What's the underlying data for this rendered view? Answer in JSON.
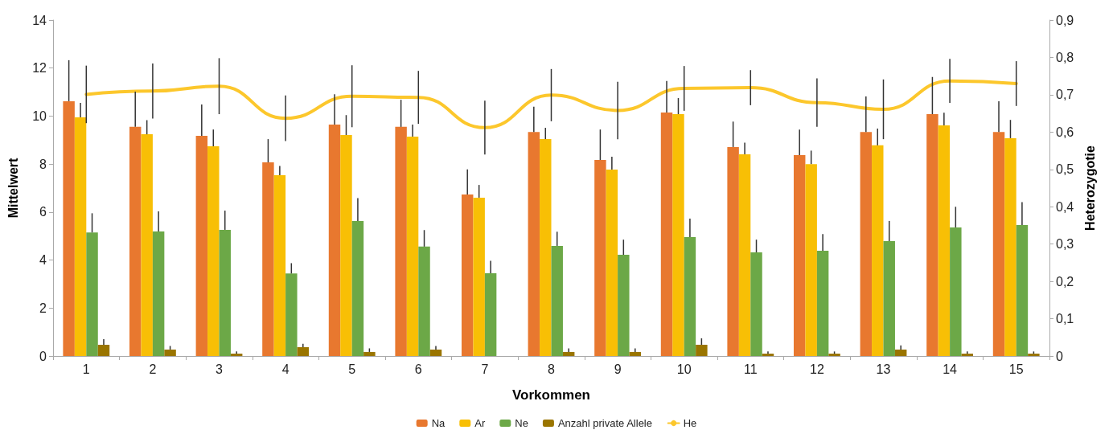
{
  "chart_data": {
    "type": "bar",
    "xlabel": "Vorkommen",
    "ylabel": "Mittelwert",
    "y2label": "Heterozygotie",
    "categories": [
      "1",
      "2",
      "3",
      "4",
      "5",
      "6",
      "7",
      "8",
      "9",
      "10",
      "11",
      "12",
      "13",
      "14",
      "15"
    ],
    "series": [
      {
        "name": "Na",
        "color": "#e8782f",
        "values": [
          10.62,
          9.55,
          9.18,
          8.07,
          9.65,
          9.55,
          6.73,
          9.34,
          8.17,
          10.15,
          8.71,
          8.37,
          9.34,
          10.08,
          9.34
        ],
        "errors": [
          [
            10.62,
            12.33
          ],
          [
            9.55,
            11.02
          ],
          [
            9.18,
            10.48
          ],
          [
            8.07,
            9.04
          ],
          [
            9.65,
            10.91
          ],
          [
            9.55,
            10.68
          ],
          [
            6.73,
            7.78
          ],
          [
            9.34,
            10.39
          ],
          [
            8.17,
            9.44
          ],
          [
            10.15,
            11.46
          ],
          [
            8.71,
            9.77
          ],
          [
            8.37,
            9.44
          ],
          [
            9.34,
            10.82
          ],
          [
            10.08,
            11.63
          ],
          [
            9.34,
            10.62
          ]
        ]
      },
      {
        "name": "Ar",
        "color": "#f8bf05",
        "values": [
          9.95,
          9.24,
          8.74,
          7.54,
          9.21,
          9.14,
          6.6,
          9.04,
          7.77,
          10.08,
          8.41,
          8.0,
          8.78,
          9.61,
          9.08
        ],
        "errors": [
          [
            9.95,
            10.55
          ],
          [
            9.24,
            9.83
          ],
          [
            8.74,
            9.44
          ],
          [
            7.54,
            7.92
          ],
          [
            9.21,
            10.04
          ],
          [
            9.14,
            9.65
          ],
          [
            6.6,
            7.13
          ],
          [
            9.04,
            9.51
          ],
          [
            7.77,
            8.31
          ],
          [
            10.08,
            10.75
          ],
          [
            8.41,
            8.89
          ],
          [
            8.0,
            8.56
          ],
          [
            8.78,
            9.48
          ],
          [
            9.61,
            10.14
          ],
          [
            9.08,
            9.84
          ]
        ]
      },
      {
        "name": "Ne",
        "color": "#6ca847",
        "values": [
          5.15,
          5.19,
          5.26,
          3.44,
          5.63,
          4.56,
          3.45,
          4.59,
          4.22,
          4.96,
          4.32,
          4.39,
          4.79,
          5.36,
          5.46
        ],
        "errors": [
          [
            5.15,
            5.95
          ],
          [
            5.19,
            6.03
          ],
          [
            5.26,
            6.06
          ],
          [
            3.44,
            3.87
          ],
          [
            5.63,
            6.58
          ],
          [
            4.56,
            5.25
          ],
          [
            3.45,
            3.97
          ],
          [
            4.59,
            5.18
          ],
          [
            4.22,
            4.85
          ],
          [
            4.96,
            5.73
          ],
          [
            4.32,
            4.85
          ],
          [
            4.39,
            5.08
          ],
          [
            4.79,
            5.63
          ],
          [
            5.36,
            6.22
          ],
          [
            5.46,
            6.41
          ]
        ]
      },
      {
        "name": "Anzahl private Allele",
        "color": "#9a7500",
        "values": [
          0.47,
          0.27,
          0.1,
          0.37,
          0.17,
          0.27,
          0,
          0.17,
          0.17,
          0.47,
          0.1,
          0.1,
          0.27,
          0.1,
          0.1
        ],
        "errors": [
          [
            0.47,
            0.7
          ],
          [
            0.27,
            0.42
          ],
          [
            0.1,
            0.19
          ],
          [
            0.37,
            0.51
          ],
          [
            0.17,
            0.32
          ],
          [
            0.27,
            0.42
          ],
          null,
          [
            0.17,
            0.32
          ],
          [
            0.17,
            0.32
          ],
          [
            0.47,
            0.74
          ],
          [
            0.1,
            0.19
          ],
          [
            0.1,
            0.19
          ],
          [
            0.27,
            0.44
          ],
          [
            0.1,
            0.19
          ],
          [
            0.1,
            0.19
          ]
        ]
      },
      {
        "name": "He",
        "type": "line",
        "axis": "y2",
        "color": "#fcc72c",
        "values": [
          0.701,
          0.71,
          0.723,
          0.637,
          0.696,
          0.693,
          0.612,
          0.699,
          0.658,
          0.717,
          0.719,
          0.679,
          0.661,
          0.737,
          0.73
        ],
        "errors": [
          0.077,
          0.074,
          0.075,
          0.061,
          0.083,
          0.071,
          0.072,
          0.07,
          0.077,
          0.06,
          0.047,
          0.065,
          0.08,
          0.059,
          0.06
        ]
      }
    ],
    "ylim": [
      0,
      14
    ],
    "yticks": [
      0,
      2,
      4,
      6,
      8,
      10,
      12,
      14
    ],
    "y2lim": [
      0,
      0.9
    ],
    "y2ticks": [
      0,
      {
        "value": 0.1,
        "label": "0,1"
      },
      {
        "value": 0.2,
        "label": "0,2"
      },
      {
        "value": 0.3,
        "label": "0,3"
      },
      {
        "value": 0.4,
        "label": "0,4"
      },
      {
        "value": 0.5,
        "label": "0,5"
      },
      {
        "value": 0.6,
        "label": "0,6"
      },
      {
        "value": 0.7,
        "label": "0,7"
      },
      {
        "value": 0.8,
        "label": "0,8"
      },
      {
        "value": 0.9,
        "label": "0,9"
      }
    ],
    "grid": false,
    "legend": "bottom",
    "marker": "none",
    "line_style": "solid"
  }
}
